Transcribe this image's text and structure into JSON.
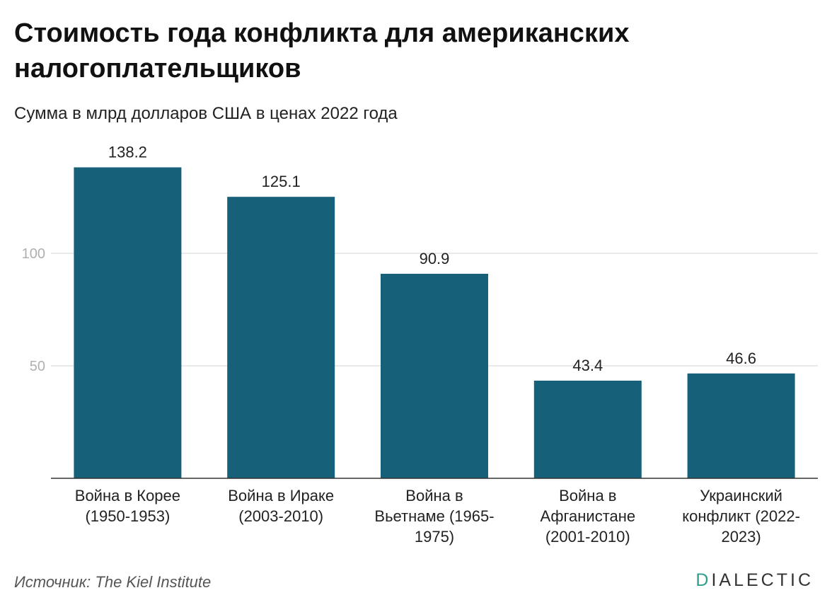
{
  "title": "Стоимость года конфликта для американских налогоплательщиков",
  "subtitle": "Сумма в млрд долларов США в ценах 2022 года",
  "source": "Источник: The Kiel Institute",
  "logo": {
    "first": "D",
    "rest": "IALECTIC"
  },
  "colors": {
    "bar": "#17607a",
    "grid": "#e3e3e3",
    "axis": "#333333",
    "logo_accent": "#2e9e8f"
  },
  "chart_data": {
    "type": "bar",
    "categories": [
      [
        "Война в Корее",
        "(1950-1953)"
      ],
      [
        "Война в Ираке",
        "(2003-2010)"
      ],
      [
        "Война в",
        "Вьетнаме (1965-",
        "1975)"
      ],
      [
        "Война в",
        "Афганистане",
        "(2001-2010)"
      ],
      [
        "Украинский",
        "конфликт (2022-",
        "2023)"
      ]
    ],
    "values": [
      138.2,
      125.1,
      90.9,
      43.4,
      46.6
    ],
    "value_labels": [
      "138.2",
      "125.1",
      "90.9",
      "43.4",
      "46.6"
    ],
    "yticks": [
      50,
      100
    ],
    "ylim": [
      0,
      150
    ],
    "grid": true,
    "legend": false
  }
}
